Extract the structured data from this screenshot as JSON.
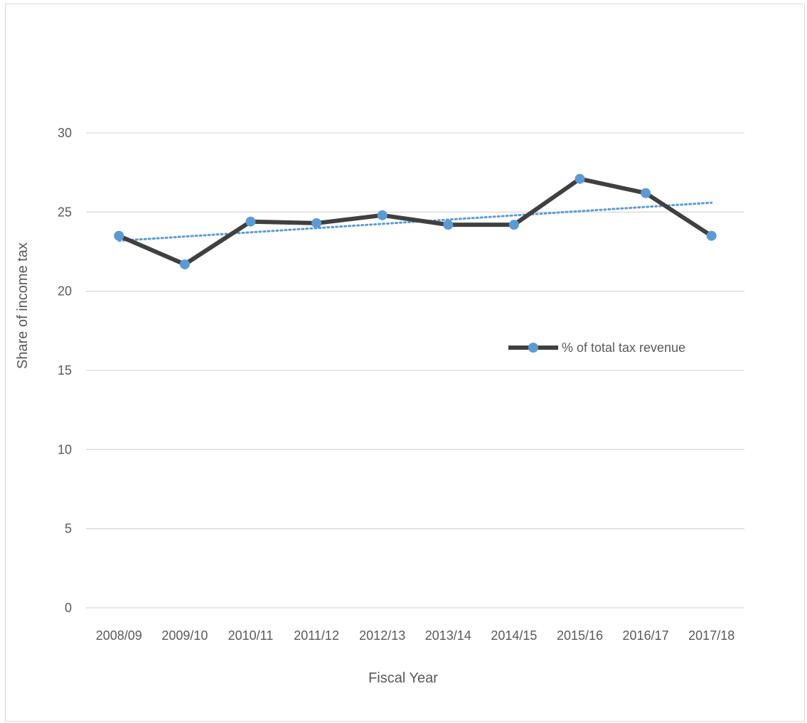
{
  "chart_data": {
    "type": "line",
    "title": "",
    "xlabel": "Fiscal Year",
    "ylabel": "Share of income tax",
    "categories": [
      "2008/09",
      "2009/10",
      "2010/11",
      "2011/12",
      "2012/13",
      "2013/14",
      "2014/15",
      "2015/16",
      "2016/17",
      "2017/18"
    ],
    "series": [
      {
        "name": "% of total tax revenue",
        "values": [
          23.5,
          21.7,
          24.4,
          24.3,
          24.8,
          24.2,
          24.2,
          27.1,
          26.2,
          23.5
        ],
        "color": "#404040",
        "marker_color": "#5b9bd5"
      }
    ],
    "trendline": {
      "type": "linear",
      "color": "#5b9bd5",
      "style": "dotted"
    },
    "ylim": [
      0,
      30
    ],
    "yticks": [
      0,
      5,
      10,
      15,
      20,
      25,
      30
    ],
    "grid": true,
    "legend_position": "right"
  }
}
